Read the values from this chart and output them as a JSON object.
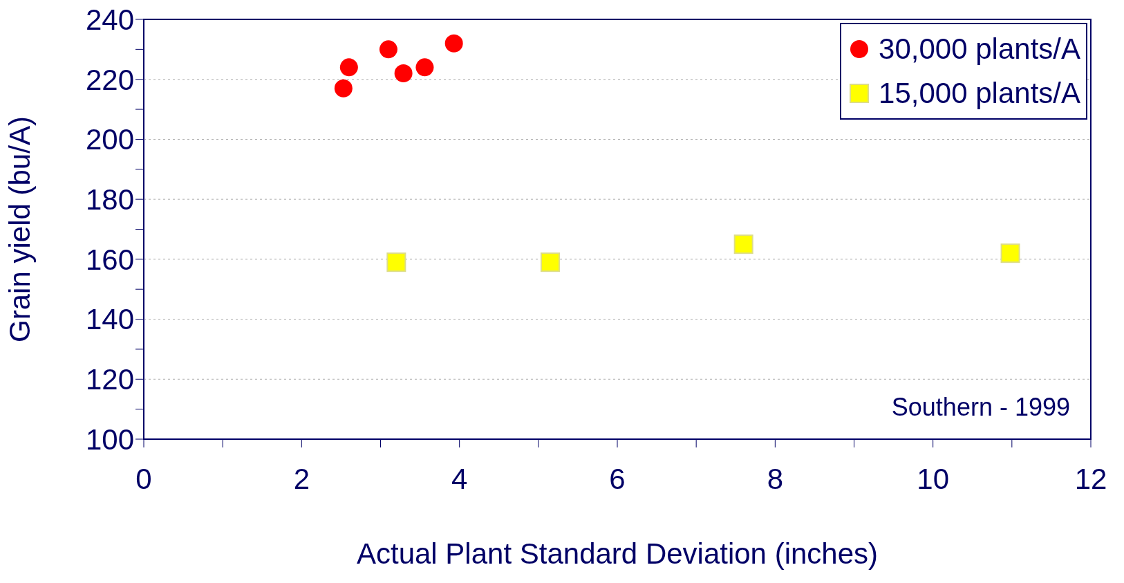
{
  "chart_data": {
    "type": "scatter",
    "xlabel": "Actual Plant Standard Deviation (inches)",
    "ylabel": "Grain yield (bu/A)",
    "xlim": [
      0,
      12
    ],
    "xticks": [
      0,
      {
        "value": 1,
        "label": null
      },
      2,
      {
        "value": 3,
        "label": null
      },
      4,
      {
        "value": 5,
        "label": null
      },
      6,
      {
        "value": 7,
        "label": null
      },
      8,
      {
        "value": 9,
        "label": null
      },
      10,
      {
        "value": 11,
        "label": null
      },
      12
    ],
    "ylim": [
      100,
      240
    ],
    "yticks": [
      100,
      {
        "value": 110,
        "label": null
      },
      120,
      {
        "value": 130,
        "label": null
      },
      140,
      {
        "value": 150,
        "label": null
      },
      160,
      {
        "value": 170,
        "label": null
      },
      180,
      {
        "value": 190,
        "label": null
      },
      200,
      {
        "value": 210,
        "label": null
      },
      220,
      {
        "value": 230,
        "label": null
      },
      240
    ],
    "grid": "y",
    "legend": "top right",
    "annotations": [
      "Southern - 1999"
    ],
    "series": [
      {
        "name": "30,000 plants/A",
        "color": "#ff0000",
        "marker": "circle",
        "x": [
          2.53,
          2.6,
          3.1,
          3.29,
          3.56,
          3.93
        ],
        "values": [
          217,
          224,
          230,
          222,
          224,
          232
        ]
      },
      {
        "name": "15,000 plants/A",
        "color": "#ffff00",
        "marker": "square",
        "x": [
          3.2,
          5.15,
          7.6,
          10.98
        ],
        "values": [
          159,
          159,
          165,
          162
        ]
      }
    ]
  }
}
